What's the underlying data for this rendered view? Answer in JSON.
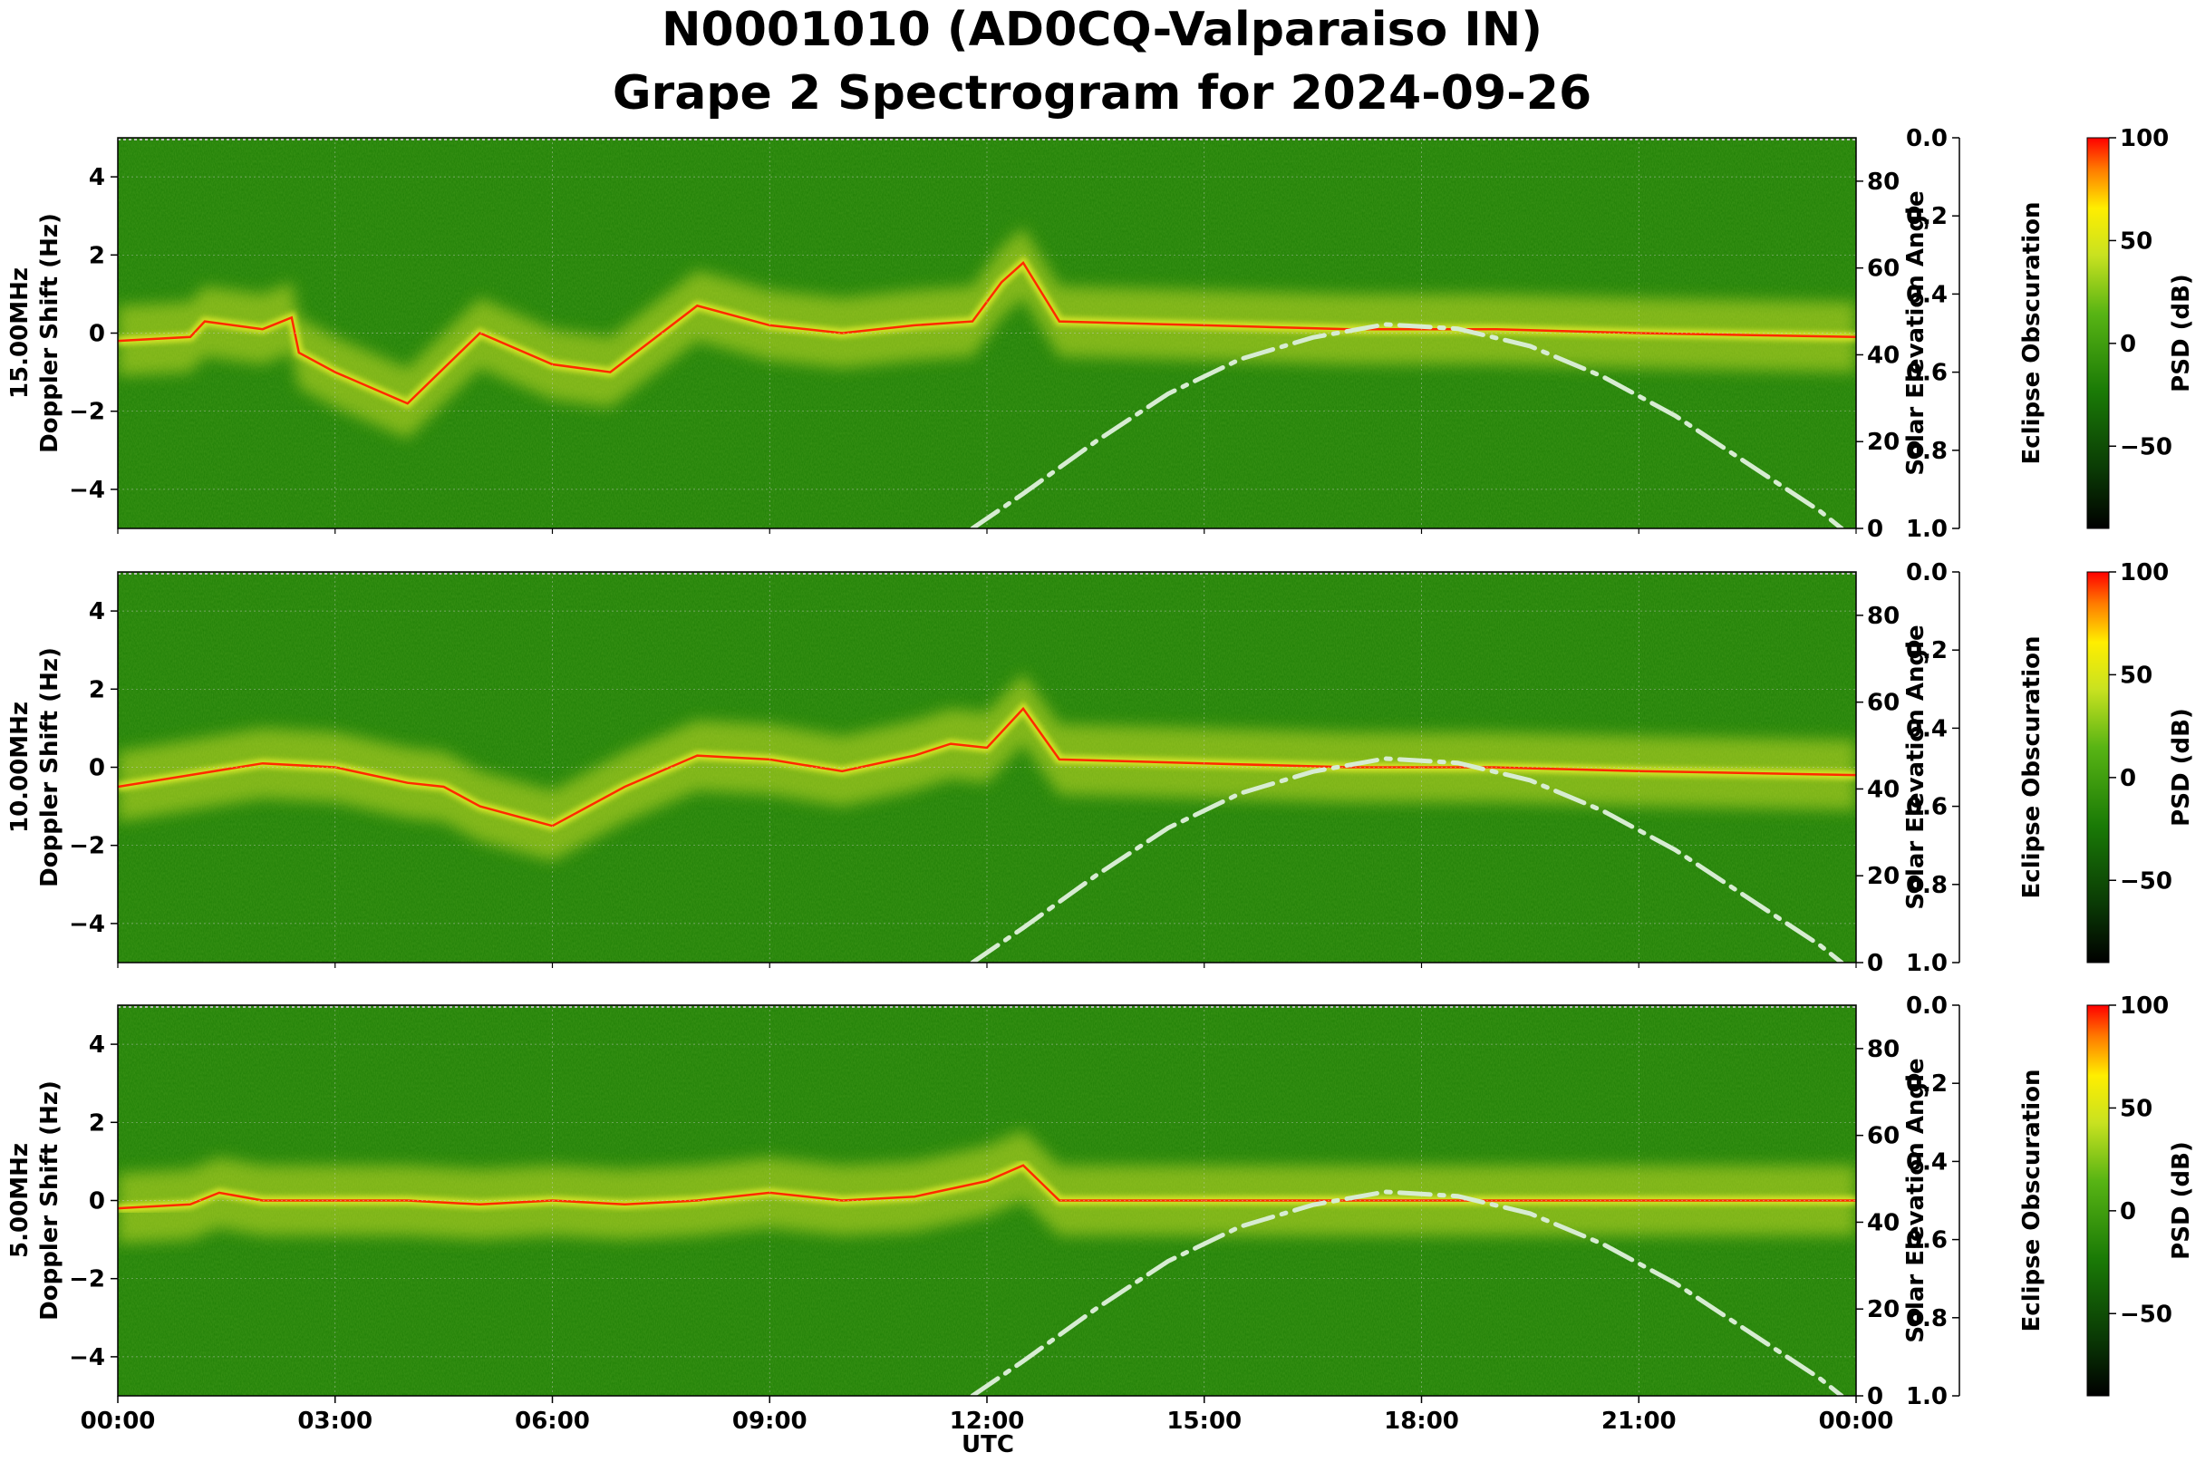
{
  "figure": {
    "title_line1": "N0001010 (AD0CQ-Valparaiso IN)",
    "title_line2": "Grape 2 Spectrogram for 2024-09-26",
    "xlabel": "UTC",
    "x_ticks": [
      "00:00",
      "03:00",
      "06:00",
      "09:00",
      "12:00",
      "15:00",
      "18:00",
      "21:00",
      "00:00"
    ],
    "y_ticks": [
      "4",
      "2",
      "0",
      "−2",
      "−4"
    ],
    "elev_ticks": [
      "0",
      "20",
      "40",
      "60",
      "80"
    ],
    "eclipse_ticks": [
      "0.0",
      "0.2",
      "0.4",
      "0.6",
      "0.8",
      "1.0"
    ],
    "cbar_ticks": [
      "100",
      "50",
      "0",
      "−50"
    ],
    "right_label_elev": "Solar Elevation Angle",
    "right_label_eclipse": "Eclipse Obscuration",
    "cbar_label": "PSD (dB)",
    "colors": {
      "background": "#1f7f06",
      "signal": "#e8ef2a",
      "trace": "#ff2a00",
      "elevation_curve": "#d7ecd2"
    }
  },
  "chart_data": [
    {
      "type": "heatmap",
      "panel": "15.00MHz",
      "ylabel_line1": "15.00MHz",
      "ylabel_line2": "Doppler Shift (Hz)",
      "xlim_hours": [
        0,
        24
      ],
      "ylim_hz": [
        -5,
        5
      ],
      "y2lim_elevation_deg": [
        0,
        90
      ],
      "y3lim_eclipse": [
        0.0,
        1.0
      ],
      "clim_db": [
        -90,
        100
      ],
      "doppler_trace_hz": [
        [
          0,
          -0.2
        ],
        [
          1,
          -0.1
        ],
        [
          1.2,
          0.3
        ],
        [
          2,
          0.1
        ],
        [
          2.4,
          0.4
        ],
        [
          2.5,
          -0.5
        ],
        [
          3,
          -1.0
        ],
        [
          4,
          -1.8
        ],
        [
          5,
          0.0
        ],
        [
          6,
          -0.8
        ],
        [
          6.8,
          -1.0
        ],
        [
          8,
          0.7
        ],
        [
          9,
          0.2
        ],
        [
          10,
          0.0
        ],
        [
          11,
          0.2
        ],
        [
          11.8,
          0.3
        ],
        [
          12.2,
          1.3
        ],
        [
          12.5,
          1.8
        ],
        [
          13,
          0.3
        ],
        [
          15,
          0.2
        ],
        [
          17,
          0.1
        ],
        [
          19,
          0.1
        ],
        [
          21,
          0.0
        ],
        [
          24,
          -0.1
        ]
      ],
      "solar_elevation_deg": [
        [
          11.8,
          0
        ],
        [
          12.5,
          8
        ],
        [
          13.5,
          20
        ],
        [
          14.5,
          31
        ],
        [
          15.5,
          39
        ],
        [
          16.5,
          44
        ],
        [
          17.5,
          47
        ],
        [
          18.5,
          46
        ],
        [
          19.5,
          42
        ],
        [
          20.5,
          35
        ],
        [
          21.5,
          26
        ],
        [
          22.5,
          15
        ],
        [
          23.5,
          4
        ],
        [
          23.8,
          0
        ]
      ]
    },
    {
      "type": "heatmap",
      "panel": "10.00MHz",
      "ylabel_line1": "10.00MHz",
      "ylabel_line2": "Doppler Shift (Hz)",
      "xlim_hours": [
        0,
        24
      ],
      "ylim_hz": [
        -5,
        5
      ],
      "y2lim_elevation_deg": [
        0,
        90
      ],
      "y3lim_eclipse": [
        0.0,
        1.0
      ],
      "clim_db": [
        -90,
        100
      ],
      "doppler_trace_hz": [
        [
          0,
          -0.5
        ],
        [
          1,
          -0.2
        ],
        [
          2,
          0.1
        ],
        [
          3,
          0.0
        ],
        [
          4,
          -0.4
        ],
        [
          4.5,
          -0.5
        ],
        [
          5,
          -1.0
        ],
        [
          6,
          -1.5
        ],
        [
          7,
          -0.5
        ],
        [
          8,
          0.3
        ],
        [
          9,
          0.2
        ],
        [
          10,
          -0.1
        ],
        [
          11,
          0.3
        ],
        [
          11.5,
          0.6
        ],
        [
          12,
          0.5
        ],
        [
          12.5,
          1.5
        ],
        [
          13,
          0.2
        ],
        [
          15,
          0.1
        ],
        [
          17,
          0.0
        ],
        [
          19,
          0.0
        ],
        [
          21,
          -0.1
        ],
        [
          24,
          -0.2
        ]
      ],
      "solar_elevation_deg": [
        [
          11.8,
          0
        ],
        [
          12.5,
          8
        ],
        [
          13.5,
          20
        ],
        [
          14.5,
          31
        ],
        [
          15.5,
          39
        ],
        [
          16.5,
          44
        ],
        [
          17.5,
          47
        ],
        [
          18.5,
          46
        ],
        [
          19.5,
          42
        ],
        [
          20.5,
          35
        ],
        [
          21.5,
          26
        ],
        [
          22.5,
          15
        ],
        [
          23.5,
          4
        ],
        [
          23.8,
          0
        ]
      ]
    },
    {
      "type": "heatmap",
      "panel": "5.00MHz",
      "ylabel_line1": "5.00MHz",
      "ylabel_line2": "Doppler Shift (Hz)",
      "xlim_hours": [
        0,
        24
      ],
      "ylim_hz": [
        -5,
        5
      ],
      "y2lim_elevation_deg": [
        0,
        90
      ],
      "y3lim_eclipse": [
        0.0,
        1.0
      ],
      "clim_db": [
        -90,
        100
      ],
      "doppler_trace_hz": [
        [
          0,
          -0.2
        ],
        [
          1,
          -0.1
        ],
        [
          1.4,
          0.2
        ],
        [
          2,
          0.0
        ],
        [
          3,
          0.0
        ],
        [
          4,
          0.0
        ],
        [
          5,
          -0.1
        ],
        [
          6,
          0.0
        ],
        [
          7,
          -0.1
        ],
        [
          8,
          0.0
        ],
        [
          9,
          0.2
        ],
        [
          10,
          0.0
        ],
        [
          11,
          0.1
        ],
        [
          12,
          0.5
        ],
        [
          12.5,
          0.9
        ],
        [
          13,
          0.0
        ],
        [
          24,
          0.0
        ]
      ],
      "solar_elevation_deg": [
        [
          11.8,
          0
        ],
        [
          12.5,
          8
        ],
        [
          13.5,
          20
        ],
        [
          14.5,
          31
        ],
        [
          15.5,
          39
        ],
        [
          16.5,
          44
        ],
        [
          17.5,
          47
        ],
        [
          18.5,
          46
        ],
        [
          19.5,
          42
        ],
        [
          20.5,
          35
        ],
        [
          21.5,
          26
        ],
        [
          22.5,
          15
        ],
        [
          23.5,
          4
        ],
        [
          23.8,
          0
        ]
      ]
    }
  ]
}
